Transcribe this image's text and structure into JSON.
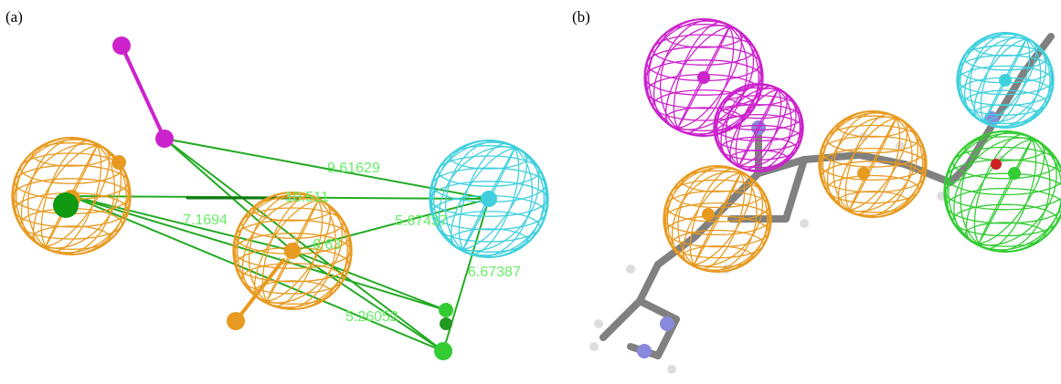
{
  "panels": [
    {
      "label": "(a)",
      "distance_labels": [
        "9.61629",
        "10.511",
        "7.1694",
        "5.67437",
        "6.63",
        "6.67387",
        "5.26052"
      ]
    },
    {
      "label": "(b)"
    }
  ]
}
